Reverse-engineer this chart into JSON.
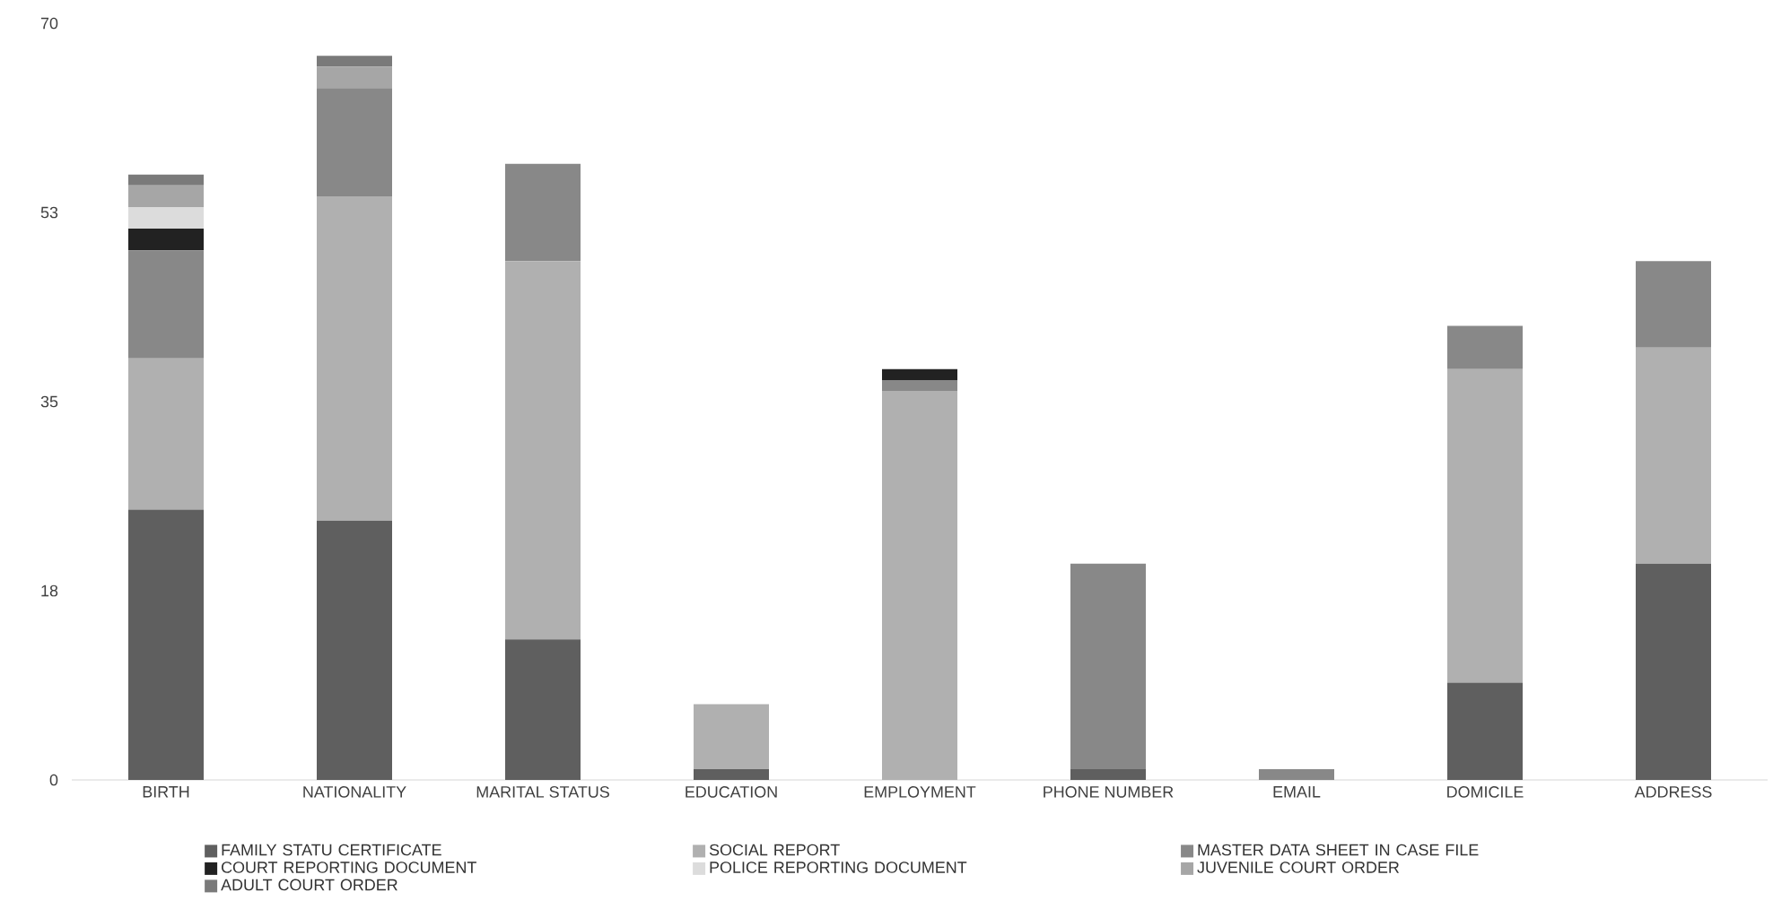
{
  "chart_data": {
    "type": "bar",
    "stacked": true,
    "categories": [
      "BIRTH",
      "NATIONALITY",
      "MARITAL STATUS",
      "EDUCATION",
      "EMPLOYMENT",
      "PHONE NUMBER",
      "EMAIL",
      "DOMICILE",
      "ADDRESS"
    ],
    "series": [
      {
        "name": "FAMILY STATU CERTIFICATE",
        "color": "#5f5f5f",
        "values": [
          25,
          24,
          13,
          1,
          0,
          1,
          0,
          9,
          20
        ]
      },
      {
        "name": "SOCIAL REPORT",
        "color": "#b0b0b0",
        "values": [
          14,
          30,
          35,
          6,
          36,
          0,
          0,
          29,
          20
        ]
      },
      {
        "name": "MASTER DATA SHEET IN CASE FILE",
        "color": "#888888",
        "values": [
          10,
          10,
          9,
          0,
          1,
          19,
          1,
          4,
          8
        ]
      },
      {
        "name": "COURT REPORTING DOCUMENT",
        "color": "#222222",
        "values": [
          2,
          0,
          0,
          0,
          1,
          0,
          0,
          0,
          0
        ]
      },
      {
        "name": "POLICE REPORTING DOCUMENT",
        "color": "#dcdcdc",
        "values": [
          2,
          0,
          0,
          0,
          0,
          0,
          0,
          0,
          0
        ]
      },
      {
        "name": "JUVENILE COURT ORDER",
        "color": "#a6a6a6",
        "values": [
          2,
          2,
          0,
          0,
          0,
          0,
          0,
          0,
          0
        ]
      },
      {
        "name": "ADULT COURT ORDER",
        "color": "#7a7a7a",
        "values": [
          1,
          1,
          0,
          0,
          0,
          0,
          0,
          0,
          0
        ]
      }
    ],
    "ylim": [
      0,
      70
    ],
    "yticks": [
      0,
      {
        "value": 17.5,
        "label": "18"
      },
      35,
      {
        "value": 52.5,
        "label": "53"
      },
      70
    ],
    "legend": "bottom"
  }
}
